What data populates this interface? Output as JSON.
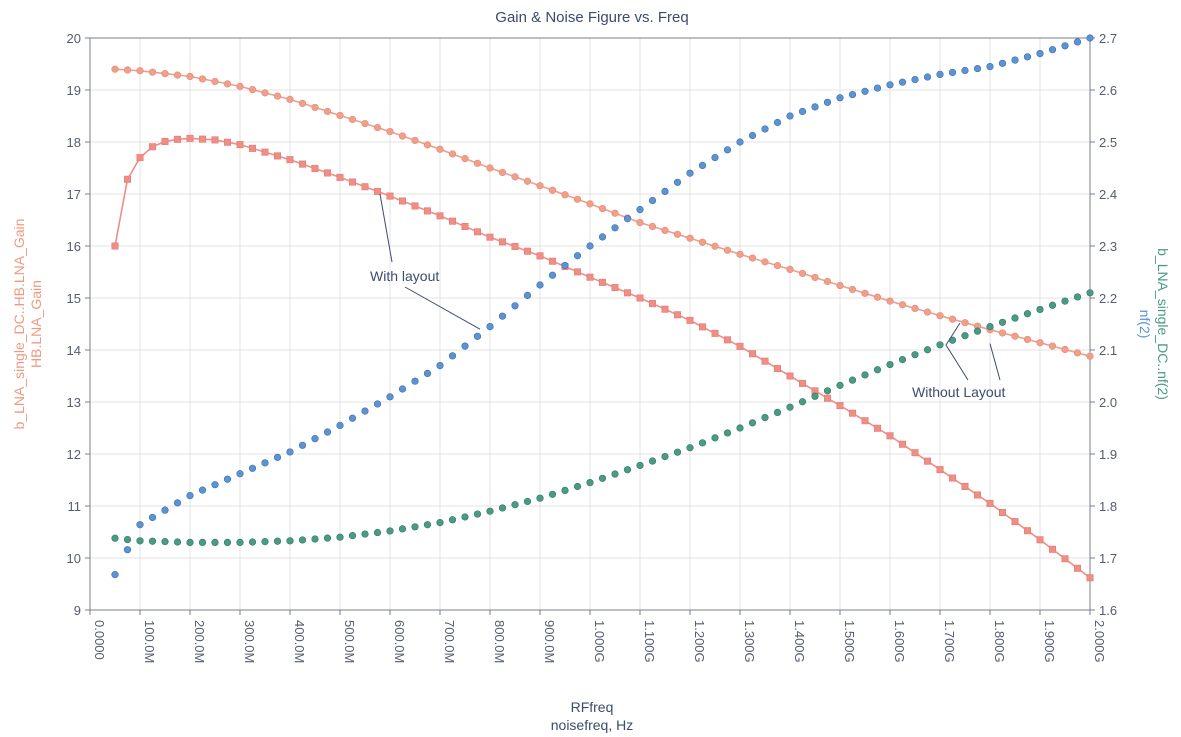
{
  "chart_data": {
    "type": "line",
    "title": "Gain & Noise Figure vs. Freq",
    "xlabel_lines": [
      "RFfreq",
      "noisefreq, Hz"
    ],
    "x_ticks": [
      "0.0000",
      "100.0M",
      "200.0M",
      "300.0M",
      "400.0M",
      "500.0M",
      "600.0M",
      "700.0M",
      "800.0M",
      "900.0M",
      "1.000G",
      "1.100G",
      "1.200G",
      "1.300G",
      "1.400G",
      "1.500G",
      "1.600G",
      "1.700G",
      "1.800G",
      "1.900G",
      "2.000G"
    ],
    "xlim_hz": [
      0,
      2000000000
    ],
    "y_left": {
      "label_lines": [
        "b_LNA_single_DC..HB.LNA_Gain",
        "HB.LNA_Gain"
      ],
      "lim": [
        9,
        20
      ],
      "ticks": [
        "9",
        "10",
        "11",
        "12",
        "13",
        "14",
        "15",
        "16",
        "17",
        "18",
        "19",
        "20"
      ],
      "color": "#ee9a82"
    },
    "y_right": {
      "label_parts": [
        {
          "text": "b_LNA_single_DC..nf(2)",
          "color": "#4a9a86"
        },
        {
          "text": "nf(2)",
          "color": "#5b93d3"
        }
      ],
      "lim": [
        1.6,
        2.7
      ],
      "ticks": [
        "1.6",
        "1.7",
        "1.8",
        "1.9",
        "2.0",
        "2.1",
        "2.2",
        "2.3",
        "2.4",
        "2.5",
        "2.6",
        "2.7"
      ]
    },
    "grid": true,
    "series": [
      {
        "key": "gain_without",
        "axis": "left",
        "marker": "circle",
        "line": true,
        "color": "#ef9f8a",
        "points": [
          [
            0.05,
            19.4
          ],
          [
            0.1,
            19.37
          ],
          [
            0.2,
            19.26
          ],
          [
            0.3,
            19.07
          ],
          [
            0.4,
            18.82
          ],
          [
            0.5,
            18.51
          ],
          [
            0.6,
            18.2
          ],
          [
            0.7,
            17.86
          ],
          [
            0.8,
            17.5
          ],
          [
            0.9,
            17.16
          ],
          [
            1.0,
            16.81
          ],
          [
            1.1,
            16.45
          ],
          [
            1.2,
            16.15
          ],
          [
            1.3,
            15.84
          ],
          [
            1.4,
            15.55
          ],
          [
            1.5,
            15.24
          ],
          [
            1.6,
            14.94
          ],
          [
            1.7,
            14.66
          ],
          [
            1.8,
            14.39
          ],
          [
            1.9,
            14.14
          ],
          [
            2.0,
            13.88
          ]
        ]
      },
      {
        "key": "gain_with",
        "axis": "left",
        "marker": "square",
        "line": true,
        "color": "#ef8e86",
        "points": [
          [
            0.05,
            16.0
          ],
          [
            0.07,
            17.2
          ],
          [
            0.1,
            17.7
          ],
          [
            0.13,
            17.95
          ],
          [
            0.16,
            18.04
          ],
          [
            0.2,
            18.07
          ],
          [
            0.25,
            18.04
          ],
          [
            0.3,
            17.95
          ],
          [
            0.4,
            17.66
          ],
          [
            0.5,
            17.32
          ],
          [
            0.6,
            16.96
          ],
          [
            0.7,
            16.58
          ],
          [
            0.8,
            16.17
          ],
          [
            0.9,
            15.81
          ],
          [
            1.0,
            15.4
          ],
          [
            1.1,
            15.0
          ],
          [
            1.2,
            14.57
          ],
          [
            1.3,
            14.07
          ],
          [
            1.4,
            13.5
          ],
          [
            1.5,
            12.93
          ],
          [
            1.6,
            12.35
          ],
          [
            1.7,
            11.7
          ],
          [
            1.8,
            11.05
          ],
          [
            1.9,
            10.35
          ],
          [
            2.0,
            9.62
          ]
        ]
      },
      {
        "key": "nf_with",
        "axis": "right",
        "marker": "circle",
        "line": false,
        "color": "#5b93d3",
        "points": [
          [
            0.05,
            1.668
          ],
          [
            0.1,
            1.764
          ],
          [
            0.2,
            1.82
          ],
          [
            0.3,
            1.862
          ],
          [
            0.4,
            1.904
          ],
          [
            0.5,
            1.955
          ],
          [
            0.6,
            2.01
          ],
          [
            0.7,
            2.07
          ],
          [
            0.8,
            2.145
          ],
          [
            0.9,
            2.225
          ],
          [
            1.0,
            2.3
          ],
          [
            1.1,
            2.37
          ],
          [
            1.2,
            2.44
          ],
          [
            1.3,
            2.5
          ],
          [
            1.4,
            2.55
          ],
          [
            1.5,
            2.585
          ],
          [
            1.6,
            2.61
          ],
          [
            1.7,
            2.63
          ],
          [
            1.8,
            2.645
          ],
          [
            1.9,
            2.67
          ],
          [
            2.0,
            2.7
          ]
        ]
      },
      {
        "key": "nf_without",
        "axis": "right",
        "marker": "circle",
        "line": false,
        "color": "#4a9a86",
        "points": [
          [
            0.05,
            1.738
          ],
          [
            0.1,
            1.733
          ],
          [
            0.2,
            1.73
          ],
          [
            0.3,
            1.73
          ],
          [
            0.4,
            1.733
          ],
          [
            0.5,
            1.74
          ],
          [
            0.6,
            1.752
          ],
          [
            0.7,
            1.768
          ],
          [
            0.8,
            1.79
          ],
          [
            0.9,
            1.815
          ],
          [
            1.0,
            1.845
          ],
          [
            1.1,
            1.878
          ],
          [
            1.2,
            1.912
          ],
          [
            1.3,
            1.95
          ],
          [
            1.4,
            1.99
          ],
          [
            1.5,
            2.032
          ],
          [
            1.6,
            2.072
          ],
          [
            1.7,
            2.11
          ],
          [
            1.8,
            2.145
          ],
          [
            1.9,
            2.178
          ],
          [
            2.0,
            2.21
          ]
        ]
      }
    ],
    "annotations": [
      {
        "text": "With layout",
        "target_series": "gain_with",
        "target_x": 0.58,
        "target_y": 17.0
      },
      {
        "text": "With layout",
        "target_series": "nf_with",
        "target_x": 0.78,
        "target_y": 2.14
      },
      {
        "text": "Without Layout",
        "target_series": "gain_without",
        "target_x": 1.74,
        "target_y": 14.52
      },
      {
        "text": "Without Layout",
        "target_series": "nf_without",
        "target_x": 1.74,
        "target_y": 2.12
      }
    ]
  }
}
